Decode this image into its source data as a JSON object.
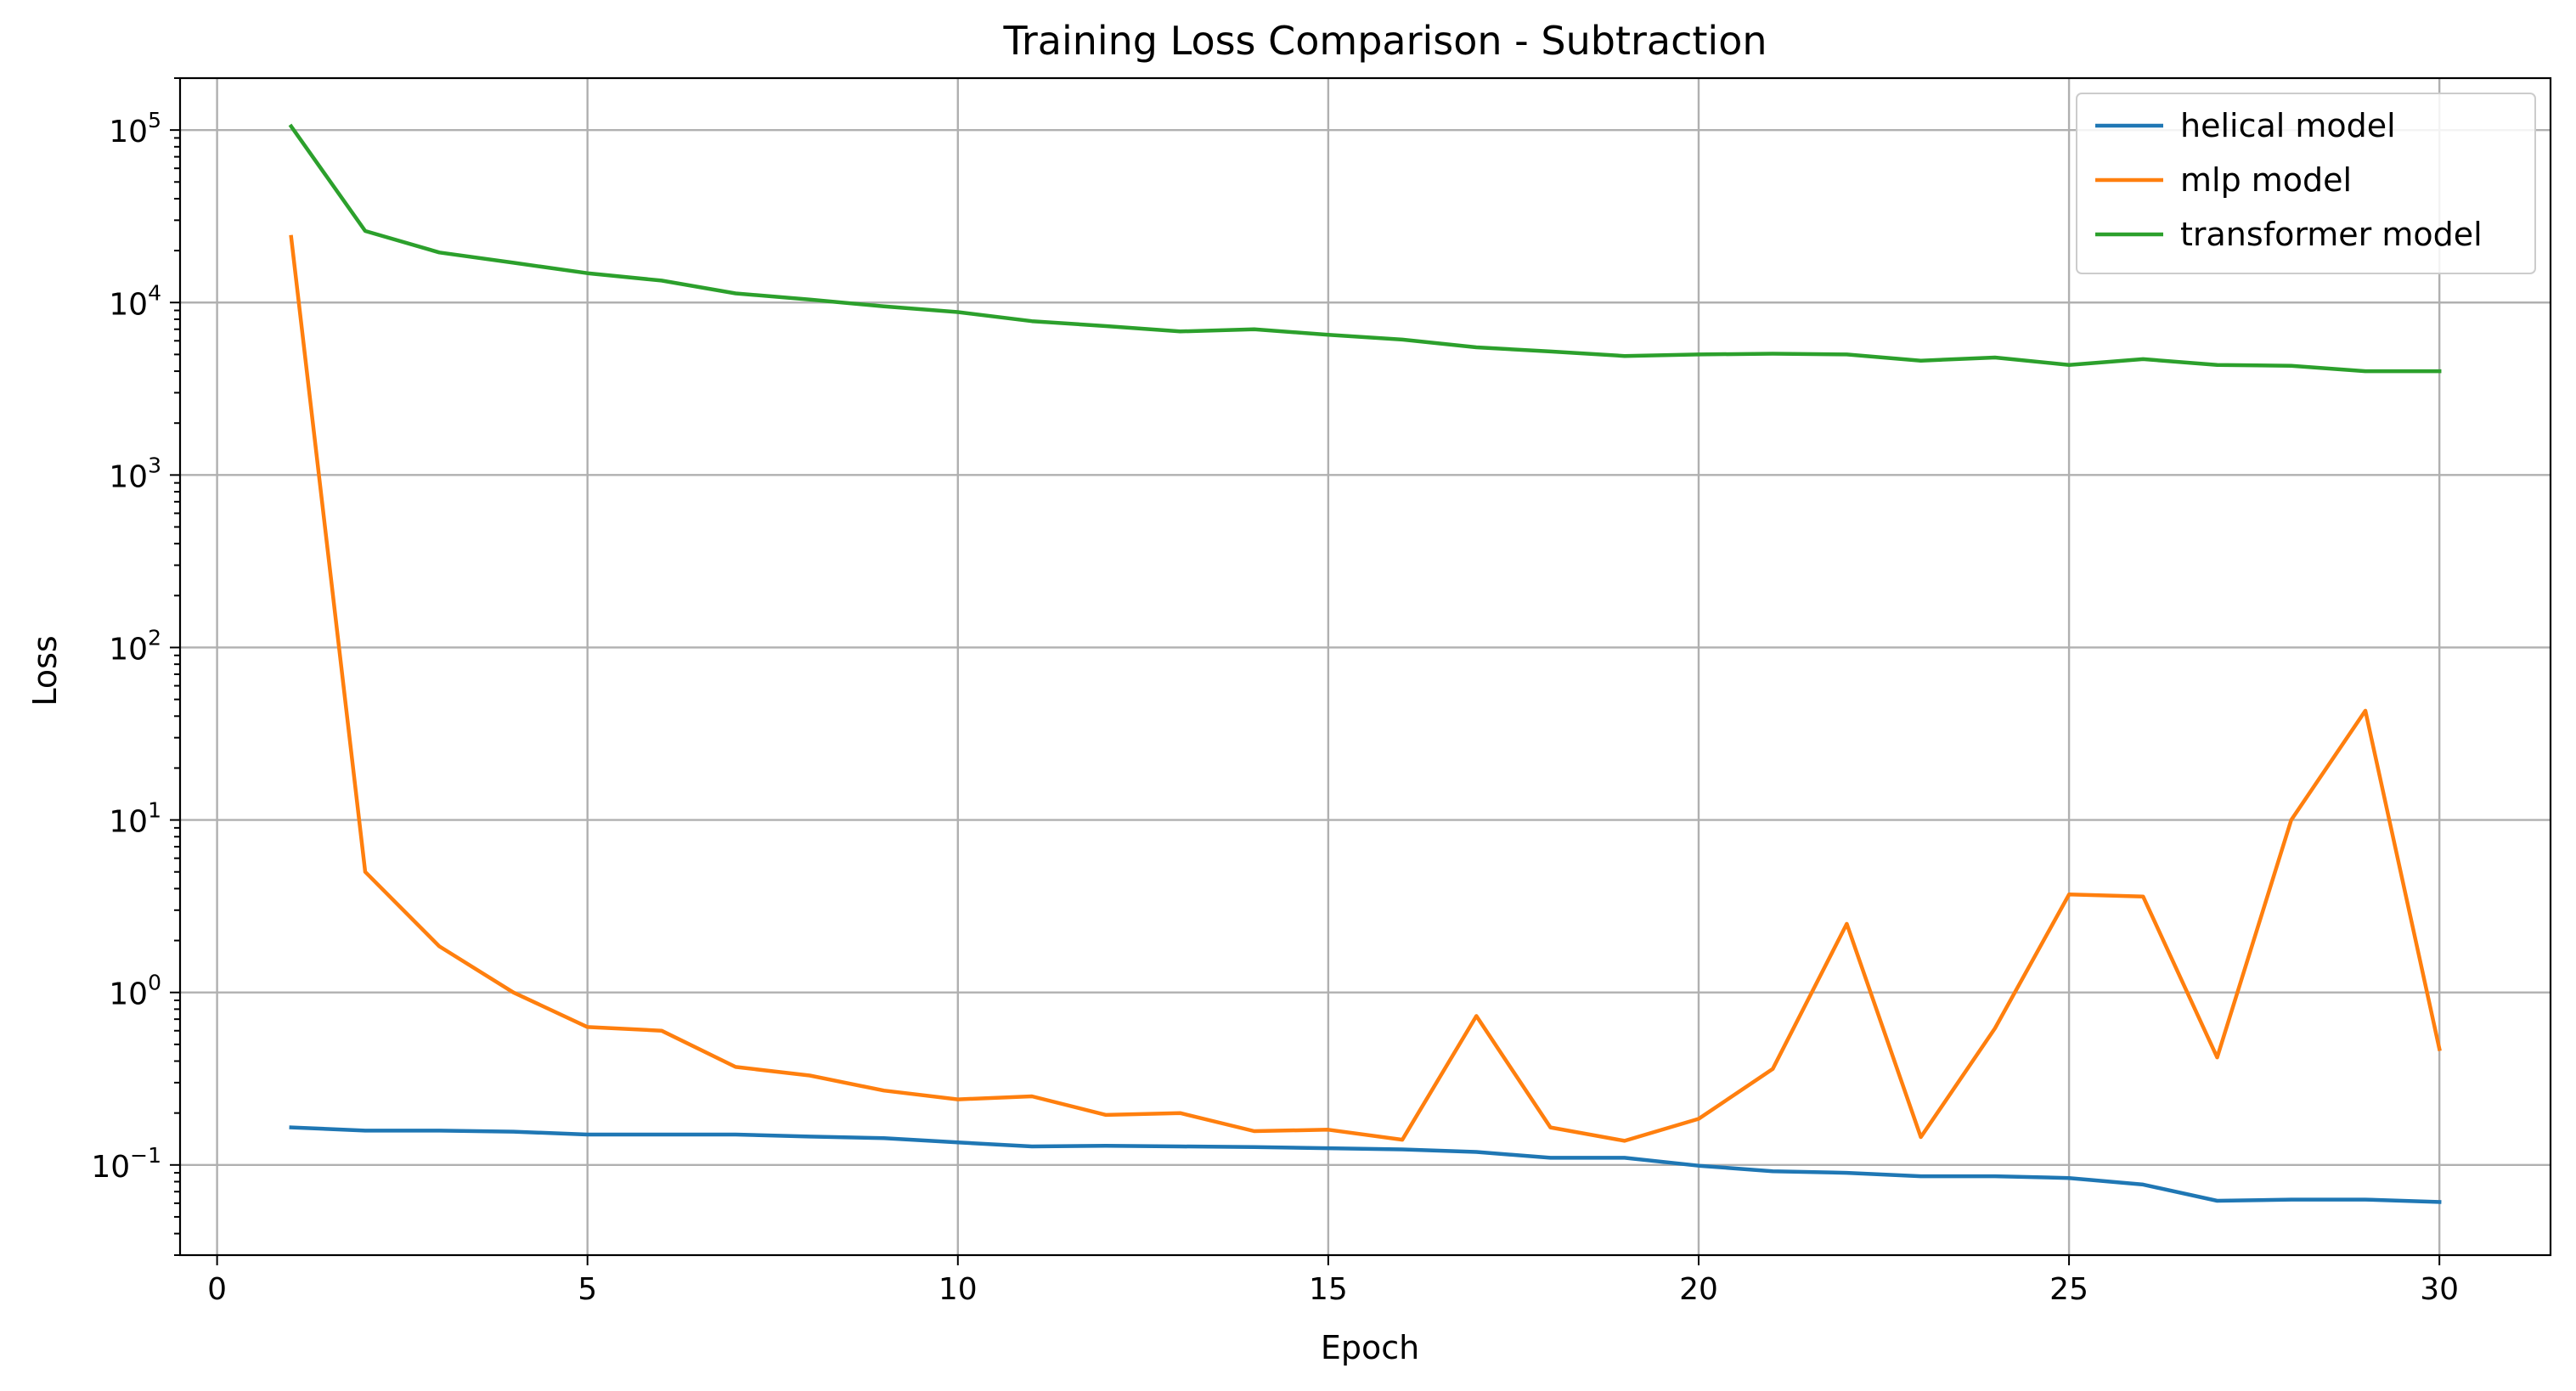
{
  "chart_data": {
    "type": "line",
    "title": "Training Loss Comparison - Subtraction",
    "xlabel": "Epoch",
    "ylabel": "Loss",
    "xlim": [
      -0.5,
      31.5
    ],
    "ylim": [
      0.03,
      200000
    ],
    "yscale": "log",
    "grid": true,
    "legend_position": "top-right",
    "x_ticks": [
      0,
      5,
      10,
      15,
      20,
      25,
      30
    ],
    "y_ticks": [
      {
        "value": 0.1,
        "base": "10",
        "exp": "−1"
      },
      {
        "value": 1,
        "base": "10",
        "exp": "0"
      },
      {
        "value": 10,
        "base": "10",
        "exp": "1"
      },
      {
        "value": 100,
        "base": "10",
        "exp": "2"
      },
      {
        "value": 1000,
        "base": "10",
        "exp": "3"
      },
      {
        "value": 10000,
        "base": "10",
        "exp": "4"
      },
      {
        "value": 100000,
        "base": "10",
        "exp": "5"
      }
    ],
    "x": [
      1,
      2,
      3,
      4,
      5,
      6,
      7,
      8,
      9,
      10,
      11,
      12,
      13,
      14,
      15,
      16,
      17,
      18,
      19,
      20,
      21,
      22,
      23,
      24,
      25,
      26,
      27,
      28,
      29,
      30
    ],
    "series": [
      {
        "name": "helical model",
        "color": "#1f77b4",
        "values": [
          0.165,
          0.158,
          0.158,
          0.156,
          0.15,
          0.15,
          0.15,
          0.146,
          0.143,
          0.135,
          0.128,
          0.129,
          0.128,
          0.127,
          0.125,
          0.123,
          0.119,
          0.11,
          0.11,
          0.099,
          0.092,
          0.09,
          0.086,
          0.086,
          0.084,
          0.077,
          0.062,
          0.063,
          0.063,
          0.061
        ]
      },
      {
        "name": "mlp model",
        "color": "#ff7f0e",
        "values": [
          24000,
          5.0,
          1.85,
          1.0,
          0.63,
          0.6,
          0.37,
          0.33,
          0.27,
          0.24,
          0.25,
          0.195,
          0.2,
          0.157,
          0.16,
          0.14,
          0.73,
          0.165,
          0.138,
          0.185,
          0.36,
          2.5,
          0.145,
          0.62,
          3.7,
          3.6,
          0.42,
          10.0,
          43,
          0.47
        ]
      },
      {
        "name": "transformer model",
        "color": "#2ca02c",
        "values": [
          105000,
          26000,
          19500,
          17000,
          14800,
          13400,
          11300,
          10400,
          9500,
          8800,
          7800,
          7300,
          6800,
          7000,
          6500,
          6100,
          5500,
          5200,
          4900,
          5000,
          5050,
          5000,
          4600,
          4800,
          4350,
          4700,
          4350,
          4300,
          4000,
          4000
        ]
      }
    ]
  }
}
